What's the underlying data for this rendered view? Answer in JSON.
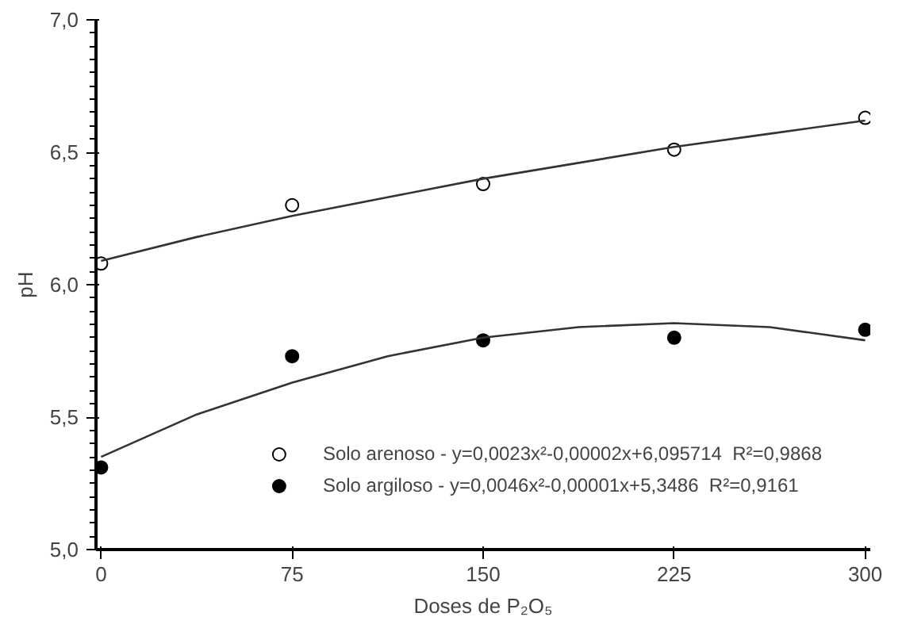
{
  "chart_data": {
    "type": "scatter",
    "xlabel": "Doses de P₂O₅",
    "ylabel": "pH",
    "x": [
      0,
      75,
      150,
      225,
      300
    ],
    "series": [
      {
        "name": "Solo arenoso - y=0,0023x²-0,00002x+6,095714  R²=0,9868",
        "color": "#ffffff",
        "values": [
          6.08,
          6.3,
          6.38,
          6.51,
          6.63
        ]
      },
      {
        "name": "Solo argiloso - y=0,0046x²-0,00001x+5,3486  R²=0,9161",
        "color": "#000000",
        "values": [
          5.31,
          5.73,
          5.79,
          5.8,
          5.83
        ]
      },
      {
        "type": "line",
        "marker": "none",
        "color": "#333333",
        "x": [
          0,
          37.5,
          75,
          112.5,
          150,
          187.5,
          225,
          262.5,
          300
        ],
        "values": [
          6.09,
          6.18,
          6.26,
          6.33,
          6.4,
          6.46,
          6.52,
          6.57,
          6.62
        ]
      },
      {
        "type": "line",
        "marker": "none",
        "color": "#333333",
        "x": [
          0,
          37.5,
          75,
          112.5,
          150,
          187.5,
          225,
          262.5,
          300
        ],
        "values": [
          5.35,
          5.51,
          5.63,
          5.73,
          5.8,
          5.84,
          5.855,
          5.84,
          5.79
        ]
      }
    ],
    "marker": "circle",
    "xlim": [
      -2,
      302
    ],
    "ylim": [
      5.0,
      7.0
    ],
    "xticks": [
      0,
      75,
      150,
      225,
      300
    ],
    "yticks": [
      {
        "value": 5.0,
        "label": "5,0"
      },
      {
        "value": 5.5,
        "label": "5,5"
      },
      {
        "value": 6.0,
        "label": "6,0"
      },
      {
        "value": 6.5,
        "label": "6,5"
      },
      {
        "value": 7.0,
        "label": "7,0"
      }
    ],
    "grid": false,
    "legend": "bottom right"
  }
}
